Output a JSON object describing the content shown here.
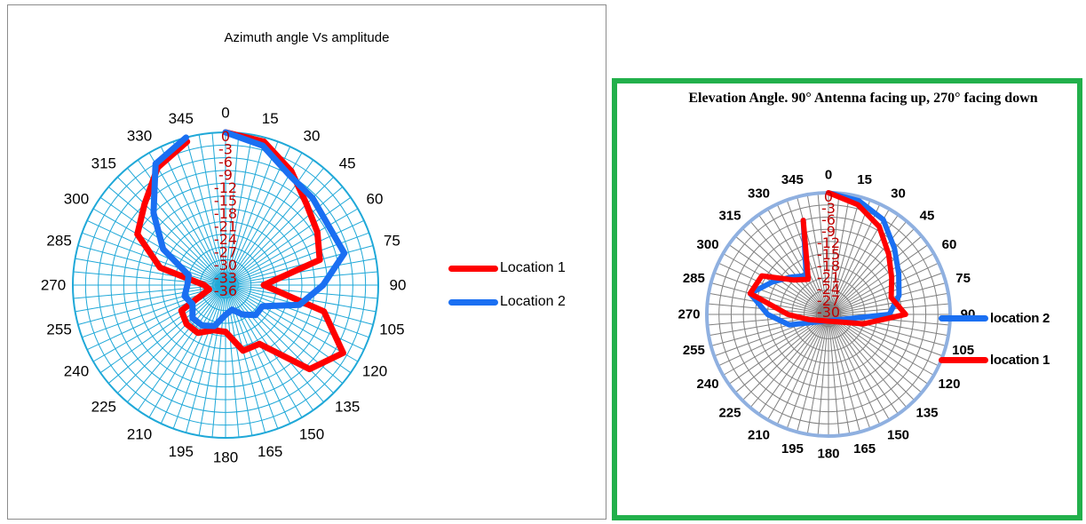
{
  "chart_data": [
    {
      "type": "polar-line",
      "title": "Azimuth angle Vs amplitude",
      "angle_ticks": [
        "0",
        "15",
        "30",
        "45",
        "60",
        "75",
        "90",
        "105",
        "120",
        "135",
        "150",
        "165",
        "180",
        "195",
        "210",
        "225",
        "240",
        "255",
        "270",
        "285",
        "300",
        "315",
        "330",
        "345"
      ],
      "radial_ticks": [
        "0",
        "-3",
        "-6",
        "-9",
        "-12",
        "-15",
        "-18",
        "-21",
        "-24",
        "-27",
        "-30",
        "-33",
        "-36"
      ],
      "rlim": [
        -36,
        0
      ],
      "grid": true,
      "legend_position": "right",
      "colors": {
        "grid": "#1fa8d8",
        "radial_labels": "#c00000"
      },
      "series": [
        {
          "name": "Location 1",
          "color": "#ff0000",
          "angles": [
            0,
            15,
            30,
            45,
            60,
            75,
            90,
            105,
            120,
            135,
            150,
            165,
            180,
            195,
            210,
            225,
            240,
            255,
            270,
            285,
            300,
            315,
            330,
            345
          ],
          "values": [
            0,
            -1,
            -5,
            -9,
            -11,
            -13,
            -27,
            -12,
            -4,
            -8,
            -20,
            -20,
            -25,
            -25,
            -23,
            -23,
            -24,
            -32,
            -31,
            -20,
            -12,
            -9,
            -4,
            -1
          ]
        },
        {
          "name": "Location 2",
          "color": "#1a6ff2",
          "angles": [
            0,
            15,
            30,
            45,
            60,
            75,
            90,
            105,
            120,
            135,
            150,
            165,
            180,
            195,
            210,
            225,
            240,
            255,
            270,
            285,
            300,
            315,
            330,
            345
          ],
          "values": [
            0,
            -2,
            -6,
            -7,
            -8,
            -7,
            -13,
            -18,
            -26,
            -26,
            -28,
            -30,
            -29,
            -26,
            -25,
            -25,
            -27,
            -26,
            -27,
            -27,
            -19,
            -12,
            -3,
            0
          ]
        }
      ]
    },
    {
      "type": "polar-line",
      "title": "Elevation Angle. 90° Antenna facing up, 270° facing down",
      "angle_ticks": [
        "0",
        "15",
        "30",
        "45",
        "60",
        "75",
        "90",
        "105",
        "120",
        "135",
        "150",
        "165",
        "180",
        "195",
        "210",
        "225",
        "240",
        "255",
        "270",
        "285",
        "300",
        "315",
        "330",
        "345"
      ],
      "radial_ticks": [
        "0",
        "-3",
        "-6",
        "-9",
        "-12",
        "-15",
        "-18",
        "-21",
        "-24",
        "-27",
        "-30"
      ],
      "rlim": [
        -30,
        0
      ],
      "grid": true,
      "legend_position": "right",
      "colors": {
        "grid": "#808080",
        "outer_ring": "#8fb0e0",
        "radial_labels": "#c00000"
      },
      "series": [
        {
          "name": "location 2",
          "color": "#1a6ff2",
          "angles": [
            0,
            15,
            30,
            45,
            60,
            75,
            90,
            255,
            270,
            285,
            300,
            315,
            330,
            345
          ],
          "values": [
            0,
            -1,
            -3,
            -7,
            -10,
            -12,
            -15,
            -20,
            -15,
            -10,
            -14,
            -17,
            -19,
            -6
          ]
        },
        {
          "name": "location 1",
          "color": "#ff0000",
          "angles": [
            0,
            15,
            30,
            45,
            60,
            75,
            90,
            105,
            255,
            270,
            285,
            300,
            315,
            330,
            345
          ],
          "values": [
            0,
            -2,
            -5,
            -9,
            -12,
            -14,
            -11,
            -21,
            -25,
            -20,
            -10,
            -11,
            -18,
            -20,
            -6
          ]
        }
      ]
    }
  ],
  "legend_left": [
    {
      "label": "Location 1",
      "color": "#ff0000"
    },
    {
      "label": "Location 2",
      "color": "#1a6ff2"
    }
  ],
  "legend_right": [
    {
      "label": "location 2",
      "color": "#1a6ff2"
    },
    {
      "label": "location 1",
      "color": "#ff0000"
    }
  ]
}
